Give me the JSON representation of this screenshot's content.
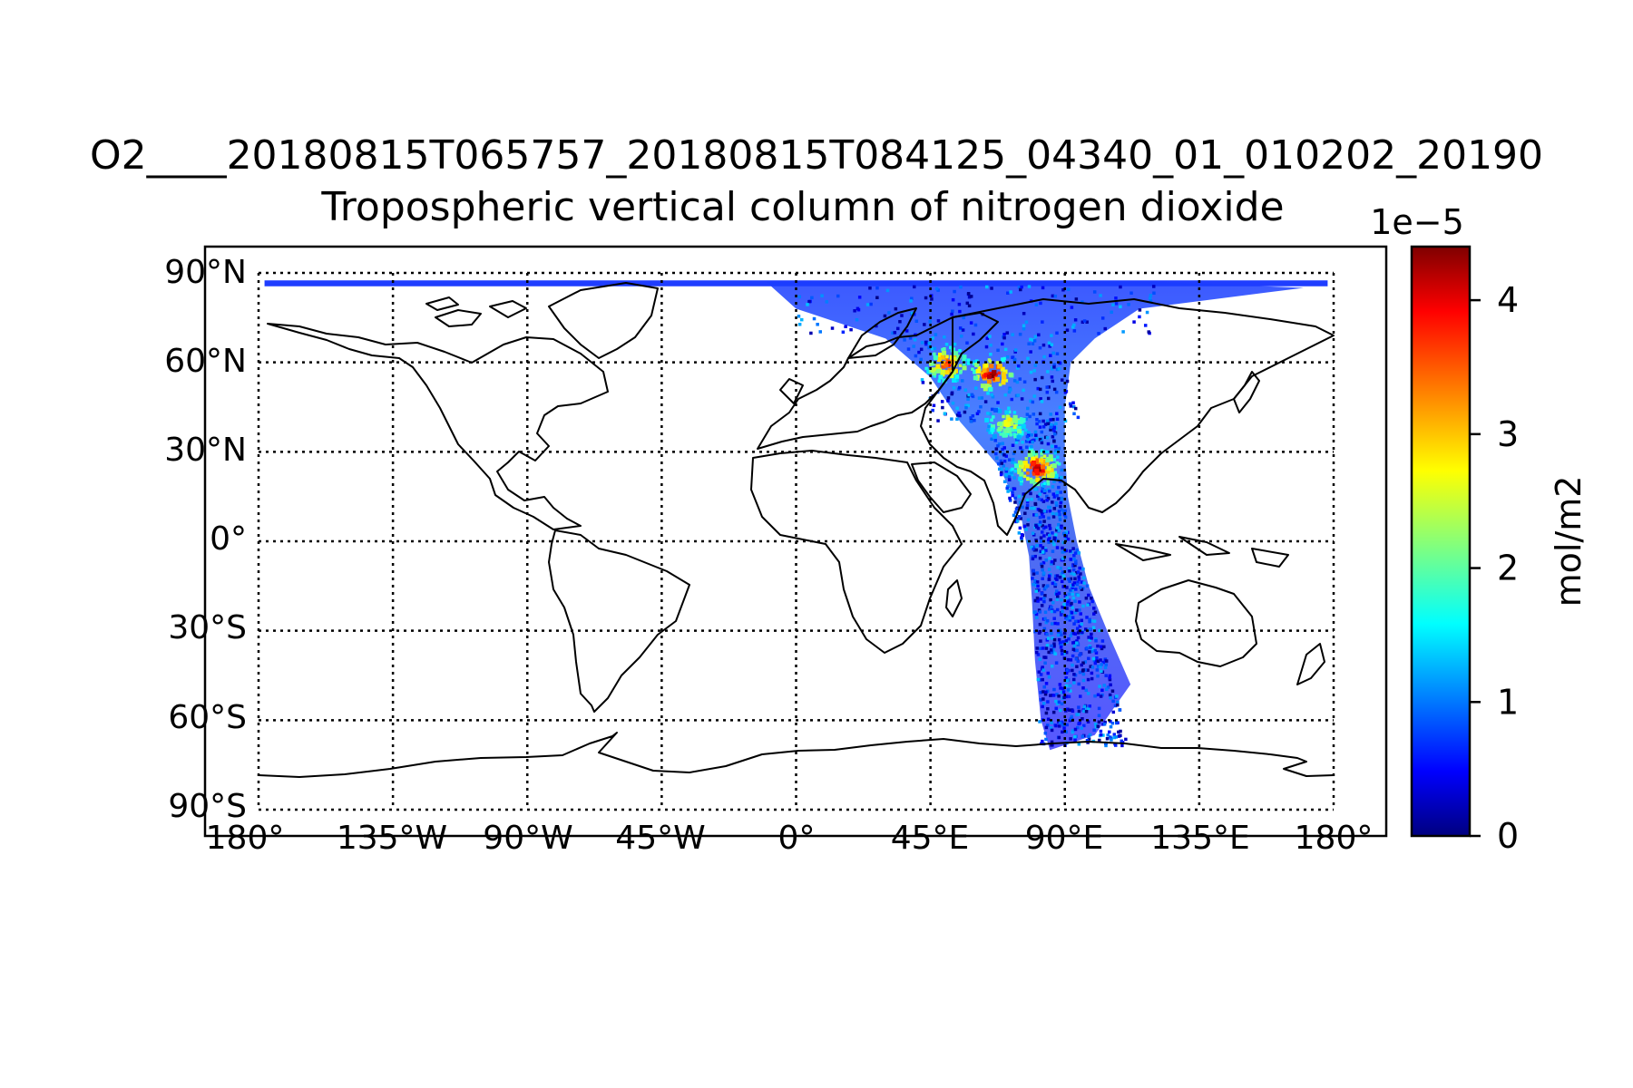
{
  "figure": {
    "title_line1": "O2____20180815T065757_20180815T084125_04340_01_010202_20190",
    "title_line2": "Tropospheric vertical column of nitrogen dioxide"
  },
  "map": {
    "projection": "equirectangular",
    "lon_range": [
      -180,
      180
    ],
    "lat_range": [
      -90,
      90
    ],
    "grid": "dotted",
    "lon_tick_labels": [
      "180°",
      "135°W",
      "90°W",
      "45°W",
      "0°",
      "45°E",
      "90°E",
      "135°E",
      "180°"
    ],
    "lat_tick_labels": [
      "90°N",
      "60°N",
      "30°N",
      "0°",
      "30°S",
      "60°S",
      "90°S"
    ],
    "coastline_color": "#000000"
  },
  "colorbar": {
    "label": "mol/m2",
    "exponent_label": "1e−5",
    "colormap": "jet",
    "range": [
      0,
      4.4
    ],
    "tick_labels": [
      "0",
      "1",
      "2",
      "3",
      "4"
    ]
  },
  "chart_data": {
    "type": "heatmap",
    "title": "Tropospheric vertical column of nitrogen dioxide",
    "value_unit": "mol/m2",
    "value_scale": 1e-05,
    "colorbar_ticks": [
      0,
      1,
      2,
      3,
      4
    ],
    "colorbar_range": [
      0,
      4.4
    ],
    "swath": {
      "description": "single orbit swath, Arctic to ~70°S, centred ~85°E",
      "lat_extent": [
        -70,
        88
      ],
      "lon_extent_at_equator": [
        75,
        90
      ]
    },
    "hotspots": [
      {
        "region": "Indo-Gangetic plain",
        "lat": 25,
        "lon": 80,
        "value": 4.0
      },
      {
        "region": "Western Russia",
        "lat": 60,
        "lon": 50,
        "value": 3.5
      },
      {
        "region": "Ural / Siberia",
        "lat": 57,
        "lon": 65,
        "value": 4.0
      },
      {
        "region": "Central Asia",
        "lat": 40,
        "lon": 70,
        "value": 2.5
      }
    ],
    "background_range": [
      0,
      1.5
    ]
  }
}
